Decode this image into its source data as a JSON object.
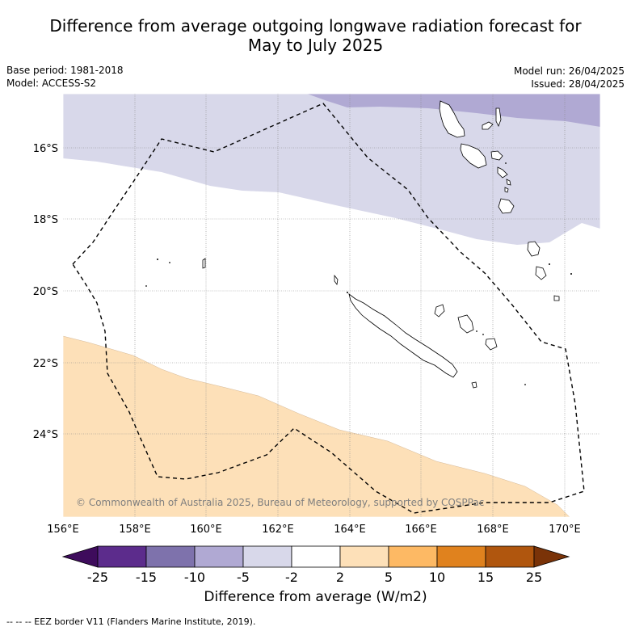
{
  "title": {
    "line1": "Difference from average outgoing longwave radiation forecast for",
    "line2": "May to July 2025"
  },
  "meta": {
    "base_period": "Base period: 1981-2018",
    "model": "Model: ACCESS-S2",
    "model_run": "Model run: 26/04/2025",
    "issued": "Issued: 28/04/2025"
  },
  "map": {
    "lat_labels": [
      "16°S",
      "18°S",
      "20°S",
      "22°S",
      "24°S"
    ],
    "lon_labels": [
      "156°E",
      "158°E",
      "160°E",
      "162°E",
      "164°E",
      "166°E",
      "168°E",
      "170°E"
    ],
    "copyright": "© Commonwealth of Australia 2025, Bureau of Meteorology, supported by COSPPac",
    "colors": {
      "minus_5_to_minus_2": "#d8d8ea",
      "minus_10_to_minus_5": "#b0a9d3",
      "plus_2_to_plus_5": "#fde0b8",
      "eez": "#000000",
      "land": "#ffffff"
    }
  },
  "colorbar": {
    "ticks": [
      "-25",
      "-15",
      "-10",
      "-5",
      "-2",
      "2",
      "5",
      "10",
      "15",
      "25"
    ],
    "colors": [
      "#3e0c5c",
      "#5c2c8c",
      "#7e72ac",
      "#b0a9d3",
      "#d8d8ea",
      "#ffffff",
      "#fde0b8",
      "#fdb964",
      "#e0821e",
      "#b0560e",
      "#7a3308"
    ],
    "label": "Difference from average (W/m2)"
  },
  "footnote": "--  --  -- EEZ border V11 (Flanders Marine Institute, 2019)."
}
